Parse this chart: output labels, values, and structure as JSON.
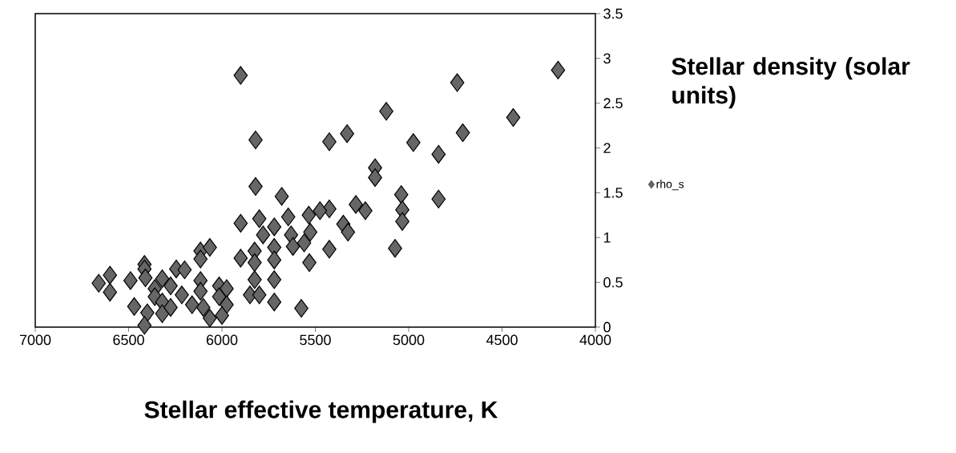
{
  "chart_data": {
    "type": "scatter",
    "xlabel": "Stellar effective temperature, K",
    "ylabel": "Stellar density (solar units)",
    "xlim": [
      7000,
      4000
    ],
    "ylim": [
      0,
      3.5
    ],
    "xticks": [
      7000,
      6500,
      6000,
      5500,
      5000,
      4500,
      4000
    ],
    "yticks": [
      0,
      0.5,
      1,
      1.5,
      2,
      2.5,
      3,
      3.5
    ],
    "legend": "right",
    "marker": "diamond",
    "grid": false,
    "x": [
      5900,
      4200,
      4740,
      5120,
      4440,
      5820,
      5425,
      5330,
      4975,
      4840,
      4710,
      5180,
      5180,
      5820,
      5680,
      5040,
      4840,
      5034,
      5034,
      5073,
      5283,
      5232,
      5350,
      5325,
      5425,
      5475,
      5527,
      5425,
      5532,
      5575,
      5645,
      5535,
      5630,
      5560,
      5620,
      5720,
      5800,
      5780,
      5720,
      5825,
      5720,
      5825,
      5900,
      5900,
      5825,
      5720,
      5850,
      5800,
      5720,
      6660,
      6600,
      6600,
      6490,
      6470,
      6415,
      6415,
      6410,
      6400,
      6415,
      6320,
      6360,
      6360,
      6320,
      6320,
      6275,
      6245,
      6200,
      6215,
      6275,
      6160,
      6115,
      6065,
      6115,
      6115,
      6115,
      6100,
      6065,
      6015,
      6015,
      5975,
      5975,
      6000
    ],
    "series": [
      {
        "name": "rho_s",
        "color": "#666666",
        "values": [
          2.81,
          2.87,
          2.73,
          2.41,
          2.34,
          2.09,
          2.07,
          2.16,
          2.06,
          1.93,
          2.17,
          1.78,
          1.67,
          1.57,
          1.46,
          1.48,
          1.43,
          1.31,
          1.18,
          0.88,
          1.37,
          1.3,
          1.15,
          1.06,
          1.32,
          1.3,
          1.06,
          0.87,
          0.72,
          0.21,
          1.23,
          1.25,
          1.03,
          0.94,
          0.9,
          1.12,
          1.21,
          1.03,
          0.89,
          0.85,
          0.75,
          0.72,
          0.77,
          1.16,
          0.53,
          0.53,
          0.36,
          0.36,
          0.28,
          0.49,
          0.58,
          0.39,
          0.52,
          0.23,
          0.7,
          0.65,
          0.55,
          0.16,
          0.02,
          0.54,
          0.43,
          0.34,
          0.28,
          0.15,
          0.46,
          0.65,
          0.64,
          0.36,
          0.22,
          0.25,
          0.85,
          0.89,
          0.76,
          0.52,
          0.4,
          0.22,
          0.1,
          0.46,
          0.34,
          0.43,
          0.25,
          0.13
        ]
      }
    ]
  }
}
